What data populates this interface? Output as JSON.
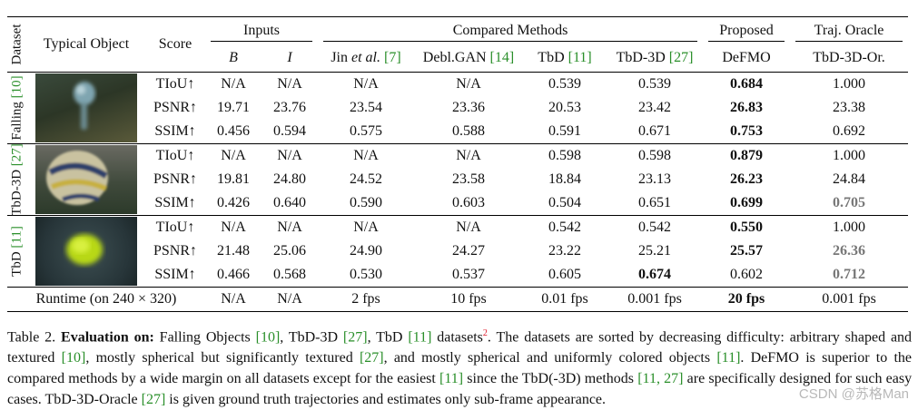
{
  "header": {
    "dataset": "Dataset",
    "typical_object": "Typical Object",
    "score": "Score",
    "inputs": "Inputs",
    "compared_methods": "Compared Methods",
    "proposed": "Proposed",
    "traj_oracle": "Traj. Oracle",
    "sub": {
      "b": "B",
      "i": "I",
      "jin": "Jin",
      "jin_etal": "et al.",
      "jin_cite": "[7]",
      "deblgan": "Debl.GAN",
      "deblgan_cite": "[14]",
      "tbd": "TbD",
      "tbd_cite": "[11]",
      "tbd3d": "TbD-3D",
      "tbd3d_cite": "[27]",
      "defmo": "DeFMO",
      "tbd3d_oracle": "TbD-3D-Or."
    }
  },
  "datasets": [
    {
      "name": "Falling",
      "cite": "[10]",
      "image_icon": "falling-object-thumbnail",
      "rows": [
        {
          "score": "TIoU↑",
          "b": "N/A",
          "i": "N/A",
          "jin": "N/A",
          "deblgan": "N/A",
          "tbd": "0.539",
          "tbd3d": "0.539",
          "defmo": "0.684",
          "oracle": "1.000"
        },
        {
          "score": "PSNR↑",
          "b": "19.71",
          "i": "23.76",
          "jin": "23.54",
          "deblgan": "23.36",
          "tbd": "20.53",
          "tbd3d": "23.42",
          "defmo": "26.83",
          "oracle": "23.38"
        },
        {
          "score": "SSIM↑",
          "b": "0.456",
          "i": "0.594",
          "jin": "0.575",
          "deblgan": "0.588",
          "tbd": "0.591",
          "tbd3d": "0.671",
          "defmo": "0.753",
          "oracle": "0.692"
        }
      ]
    },
    {
      "name": "TbD-3D",
      "cite": "[27]",
      "image_icon": "volleyball-thumbnail",
      "rows": [
        {
          "score": "TIoU↑",
          "b": "N/A",
          "i": "N/A",
          "jin": "N/A",
          "deblgan": "N/A",
          "tbd": "0.598",
          "tbd3d": "0.598",
          "defmo": "0.879",
          "oracle": "1.000"
        },
        {
          "score": "PSNR↑",
          "b": "19.81",
          "i": "24.80",
          "jin": "24.52",
          "deblgan": "23.58",
          "tbd": "18.84",
          "tbd3d": "23.13",
          "defmo": "26.23",
          "oracle": "24.84"
        },
        {
          "score": "SSIM↑",
          "b": "0.426",
          "i": "0.640",
          "jin": "0.590",
          "deblgan": "0.603",
          "tbd": "0.504",
          "tbd3d": "0.651",
          "defmo": "0.699",
          "oracle": "0.705"
        }
      ]
    },
    {
      "name": "TbD",
      "cite": "[11]",
      "image_icon": "tennis-ball-thumbnail",
      "rows": [
        {
          "score": "TIoU↑",
          "b": "N/A",
          "i": "N/A",
          "jin": "N/A",
          "deblgan": "N/A",
          "tbd": "0.542",
          "tbd3d": "0.542",
          "defmo": "0.550",
          "oracle": "1.000"
        },
        {
          "score": "PSNR↑",
          "b": "21.48",
          "i": "25.06",
          "jin": "24.90",
          "deblgan": "24.27",
          "tbd": "23.22",
          "tbd3d": "25.21",
          "defmo": "25.57",
          "oracle": "26.36"
        },
        {
          "score": "SSIM↑",
          "b": "0.466",
          "i": "0.568",
          "jin": "0.530",
          "deblgan": "0.537",
          "tbd": "0.605",
          "tbd3d": "0.674",
          "defmo": "0.602",
          "oracle": "0.712"
        }
      ]
    }
  ],
  "runtime": {
    "label": "Runtime (on 240 × 320)",
    "b": "N/A",
    "i": "N/A",
    "jin": "2 fps",
    "deblgan": "10 fps",
    "tbd": "0.01 fps",
    "tbd3d": "0.001 fps",
    "defmo": "20 fps",
    "oracle": "0.001 fps"
  },
  "caption": {
    "table_no": "Table 2.",
    "lead_bold": "Evaluation on:",
    "t1": "Falling Objects",
    "c1": "[10]",
    "t2": ", TbD-3D",
    "c2": "[27]",
    "t3": ", TbD",
    "c3": "[11]",
    "t4": "datasets",
    "fn": "2",
    "t5": ". The datasets are sorted by decreasing difficulty: arbitrary shaped and textured",
    "c4": "[10]",
    "t6": ", mostly spherical but significantly textured",
    "c5": "[27]",
    "t7": ", and mostly spherical and uniformly colored objects",
    "c6": "[11]",
    "t8": ". DeFMO is superior to the compared methods by a wide margin on all datasets except for the easiest",
    "c7": "[11]",
    "t9": "since the TbD(-3D) methods",
    "c8": "[11,",
    "c9": "27]",
    "t10": "are specifically designed for such easy cases. TbD-3D-Oracle",
    "c10": "[27]",
    "t11": "is given ground truth trajectories and estimates only sub-frame appearance."
  },
  "watermark": "CSDN @苏格Man"
}
